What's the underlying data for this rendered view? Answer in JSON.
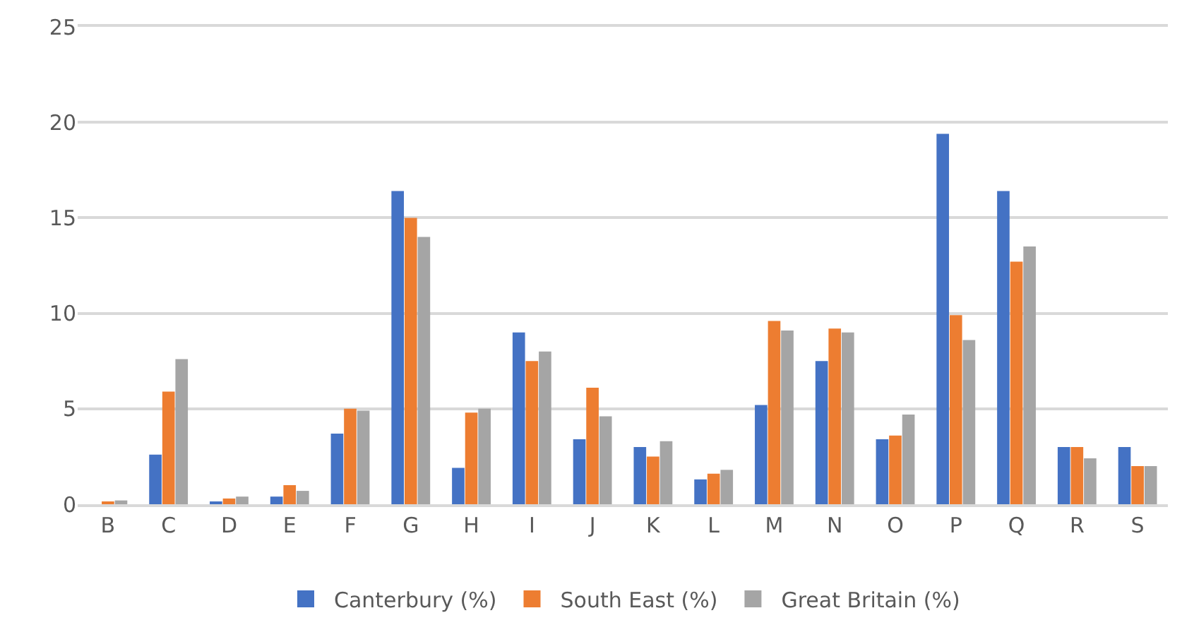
{
  "chart_data": {
    "type": "bar",
    "categories": [
      "B",
      "C",
      "D",
      "E",
      "F",
      "G",
      "H",
      "I",
      "J",
      "K",
      "L",
      "M",
      "N",
      "O",
      "P",
      "Q",
      "R",
      "S"
    ],
    "series": [
      {
        "name": "Canterbury (%)",
        "color": "#4472c4",
        "values": [
          null,
          2.6,
          0.1,
          0.4,
          3.7,
          16.4,
          1.9,
          9.0,
          3.4,
          3.0,
          1.3,
          5.2,
          7.5,
          3.4,
          19.4,
          16.4,
          3.0,
          3.0
        ]
      },
      {
        "name": "South East (%)",
        "color": "#ed7d31",
        "values": [
          0.1,
          5.9,
          0.3,
          1.0,
          5.0,
          15.0,
          4.8,
          7.5,
          6.1,
          2.5,
          1.6,
          9.6,
          9.2,
          3.6,
          9.9,
          12.7,
          3.0,
          2.0
        ]
      },
      {
        "name": "Great Britain (%)",
        "color": "#a5a5a5",
        "values": [
          0.2,
          7.6,
          0.4,
          0.7,
          4.9,
          14.0,
          5.0,
          8.0,
          4.6,
          3.3,
          1.8,
          9.1,
          9.0,
          4.7,
          8.6,
          13.5,
          2.4,
          2.0
        ]
      }
    ],
    "ylim": [
      0,
      25
    ],
    "yticks": [
      0,
      5,
      10,
      15,
      20,
      25
    ],
    "grid": "y",
    "legend": "bottom"
  }
}
